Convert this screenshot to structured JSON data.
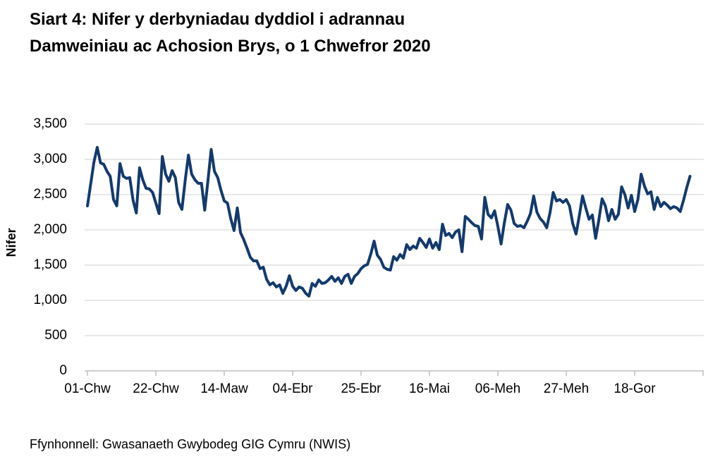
{
  "title": {
    "line1": "Siart 4: Nifer y derbyniadau dyddiol i adrannau",
    "line2": "Damweiniau ac Achosion Brys, o 1 Chwefror 2020"
  },
  "source": "Ffynhonnell: Gwasanaeth Gwybodeg GIG Cymru (NWIS)",
  "chart_data": {
    "type": "line",
    "title": "Siart 4: Nifer y derbyniadau dyddiol i adrannau Damweiniau ac Achosion Brys, o 1 Chwefror 2020",
    "xlabel": "",
    "ylabel": "Nifer",
    "ylim": [
      0,
      3500
    ],
    "y_ticks": [
      0,
      500,
      1000,
      1500,
      2000,
      2500,
      3000,
      3500
    ],
    "y_tick_labels": [
      "0",
      "500",
      "1,000",
      "1,500",
      "2,000",
      "2,500",
      "3,000",
      "3,500"
    ],
    "x_tick_labels": [
      "01-Chw",
      "22-Chw",
      "14-Maw",
      "04-Ebr",
      "25-Ebr",
      "16-Mai",
      "06-Meh",
      "27-Meh",
      "18-Gor"
    ],
    "x_tick_interval_days": 21,
    "x_start": "01-Chw",
    "grid": "horizontal",
    "legend_position": "none",
    "line_color": "#133a6d",
    "grid_color": "#d9d9d9",
    "axis_color": "#bfbfbf",
    "series": [
      {
        "name": "Derbyniadau dyddiol",
        "values": [
          2340,
          2650,
          2960,
          3170,
          2950,
          2930,
          2830,
          2760,
          2430,
          2340,
          2940,
          2760,
          2730,
          2740,
          2420,
          2240,
          2880,
          2710,
          2590,
          2580,
          2530,
          2380,
          2230,
          3040,
          2790,
          2690,
          2840,
          2740,
          2390,
          2290,
          2700,
          3060,
          2790,
          2710,
          2660,
          2660,
          2280,
          2700,
          3140,
          2830,
          2740,
          2560,
          2410,
          2380,
          2160,
          1990,
          2310,
          1960,
          1860,
          1740,
          1610,
          1560,
          1560,
          1450,
          1470,
          1300,
          1220,
          1250,
          1190,
          1220,
          1100,
          1200,
          1350,
          1200,
          1140,
          1190,
          1170,
          1100,
          1060,
          1240,
          1200,
          1290,
          1240,
          1250,
          1290,
          1340,
          1270,
          1320,
          1240,
          1340,
          1370,
          1240,
          1340,
          1380,
          1450,
          1490,
          1510,
          1660,
          1840,
          1640,
          1580,
          1470,
          1440,
          1430,
          1620,
          1570,
          1650,
          1600,
          1790,
          1720,
          1770,
          1740,
          1880,
          1820,
          1750,
          1870,
          1740,
          1820,
          1720,
          2080,
          1920,
          1950,
          1890,
          1970,
          2000,
          1690,
          2190,
          2150,
          2100,
          2060,
          2050,
          1870,
          2460,
          2220,
          2170,
          2270,
          2050,
          1800,
          2100,
          2360,
          2280,
          2090,
          2050,
          2060,
          2030,
          2120,
          2230,
          2480,
          2250,
          2160,
          2110,
          2030,
          2240,
          2530,
          2410,
          2430,
          2390,
          2430,
          2340,
          2090,
          1940,
          2200,
          2480,
          2310,
          2150,
          2210,
          1880,
          2140,
          2440,
          2340,
          2130,
          2290,
          2150,
          2220,
          2610,
          2500,
          2310,
          2490,
          2260,
          2430,
          2790,
          2620,
          2510,
          2540,
          2290,
          2460,
          2330,
          2390,
          2350,
          2300,
          2330,
          2310,
          2260,
          2420,
          2600,
          2760
        ]
      }
    ]
  }
}
